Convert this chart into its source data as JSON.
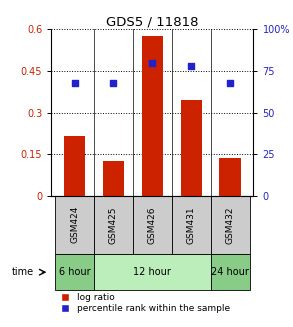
{
  "title": "GDS5 / 11818",
  "samples": [
    "GSM424",
    "GSM425",
    "GSM426",
    "GSM431",
    "GSM432"
  ],
  "log_ratio": [
    0.215,
    0.125,
    0.575,
    0.345,
    0.135
  ],
  "percentile_rank": [
    68,
    68,
    80,
    78,
    68
  ],
  "bar_color": "#cc2200",
  "dot_color": "#2222cc",
  "ylim_left": [
    0,
    0.6
  ],
  "ylim_right": [
    0,
    100
  ],
  "yticks_left": [
    0,
    0.15,
    0.3,
    0.45,
    0.6
  ],
  "yticks_right": [
    0,
    25,
    50,
    75,
    100
  ],
  "ytick_labels_left": [
    "0",
    "0.15",
    "0.3",
    "0.45",
    "0.6"
  ],
  "ytick_labels_right": [
    "0",
    "25",
    "50",
    "75",
    "100%"
  ],
  "time_groups": [
    {
      "label": "6 hour",
      "span": [
        0,
        1
      ],
      "color": "#88cc88"
    },
    {
      "label": "12 hour",
      "span": [
        1,
        4
      ],
      "color": "#bbeebb"
    },
    {
      "label": "24 hour",
      "span": [
        4,
        5
      ],
      "color": "#88cc88"
    }
  ],
  "legend_bar_label": "log ratio",
  "legend_dot_label": "percentile rank within the sample",
  "bar_color_legend": "#cc2200",
  "dot_color_legend": "#2222cc",
  "background_color": "#ffffff",
  "ylabel_left_color": "#cc2200",
  "ylabel_right_color": "#2222cc",
  "bar_width": 0.55,
  "sample_box_color": "#cccccc"
}
